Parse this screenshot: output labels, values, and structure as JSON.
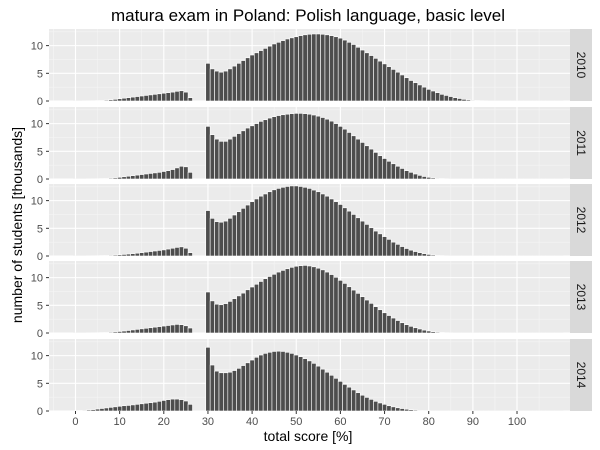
{
  "chart_data": {
    "type": "bar",
    "title": "matura exam in Poland: Polish language, basic level",
    "xlabel": "total score [%]",
    "ylabel": "number of students [thousands]",
    "xlim": [
      -6,
      112
    ],
    "ylim": [
      0,
      13
    ],
    "x_ticks": [
      0,
      10,
      20,
      30,
      40,
      50,
      60,
      70,
      80,
      90,
      100
    ],
    "y_ticks": [
      0,
      5,
      10
    ],
    "grid": true,
    "legend": "none",
    "panels": [
      {
        "label": "2010",
        "x": [
          0,
          1,
          2,
          3,
          4,
          5,
          6,
          7,
          8,
          9,
          10,
          11,
          12,
          13,
          14,
          15,
          16,
          17,
          18,
          19,
          20,
          21,
          22,
          23,
          24,
          25,
          26,
          27,
          28,
          29,
          30,
          31,
          32,
          33,
          34,
          35,
          36,
          37,
          38,
          39,
          40,
          41,
          42,
          43,
          44,
          45,
          46,
          47,
          48,
          49,
          50,
          51,
          52,
          53,
          54,
          55,
          56,
          57,
          58,
          59,
          60,
          61,
          62,
          63,
          64,
          65,
          66,
          67,
          68,
          69,
          70,
          71,
          72,
          73,
          74,
          75,
          76,
          77,
          78,
          79,
          80,
          81,
          82,
          83,
          84,
          85,
          86,
          87,
          88,
          89,
          90,
          91,
          92,
          93,
          94,
          95,
          96,
          97,
          98,
          99,
          100,
          101,
          102,
          103,
          104,
          105,
          106,
          107,
          108,
          109,
          110
        ],
        "values": [
          0.02,
          0.02,
          0.03,
          0.04,
          0.05,
          0.07,
          0.1,
          0.15,
          0.22,
          0.3,
          0.4,
          0.5,
          0.6,
          0.7,
          0.8,
          0.9,
          1.0,
          1.1,
          1.2,
          1.3,
          1.4,
          1.5,
          1.6,
          1.75,
          1.85,
          1.6,
          0.6,
          0,
          0,
          0,
          6.8,
          5.8,
          5.4,
          5.2,
          5.4,
          5.8,
          6.3,
          6.8,
          7.3,
          7.8,
          8.3,
          8.7,
          9.1,
          9.5,
          9.9,
          10.3,
          10.6,
          10.9,
          11.2,
          11.4,
          11.6,
          11.8,
          11.95,
          12.05,
          12.1,
          12.1,
          12.05,
          11.95,
          11.8,
          11.6,
          11.35,
          11.0,
          10.6,
          10.2,
          9.7,
          9.2,
          8.7,
          8.2,
          7.7,
          7.2,
          6.7,
          6.2,
          5.7,
          5.2,
          4.7,
          4.2,
          3.7,
          3.3,
          2.9,
          2.5,
          2.1,
          1.8,
          1.5,
          1.2,
          1.0,
          0.8,
          0.6,
          0.45,
          0.3,
          0.2,
          0.12,
          0.08,
          0.05,
          0.03,
          0.02,
          0.01,
          0.01,
          0.02,
          0.01,
          0.01,
          0.01,
          0.01,
          0.01,
          0.01,
          0.01,
          0.01,
          0.01,
          0.01,
          0.01,
          0.01,
          0.01
        ]
      },
      {
        "label": "2011",
        "x": [
          0,
          1,
          2,
          3,
          4,
          5,
          6,
          7,
          8,
          9,
          10,
          11,
          12,
          13,
          14,
          15,
          16,
          17,
          18,
          19,
          20,
          21,
          22,
          23,
          24,
          25,
          26,
          27,
          28,
          29,
          30,
          31,
          32,
          33,
          34,
          35,
          36,
          37,
          38,
          39,
          40,
          41,
          42,
          43,
          44,
          45,
          46,
          47,
          48,
          49,
          50,
          51,
          52,
          53,
          54,
          55,
          56,
          57,
          58,
          59,
          60,
          61,
          62,
          63,
          64,
          65,
          66,
          67,
          68,
          69,
          70,
          71,
          72,
          73,
          74,
          75,
          76,
          77,
          78,
          79,
          80,
          81,
          82,
          83,
          84,
          85,
          86,
          87,
          88,
          89,
          90,
          91,
          92,
          93,
          94,
          95,
          96,
          97,
          98,
          99,
          100,
          101,
          102,
          103,
          104,
          105,
          106,
          107,
          108,
          109,
          110
        ],
        "values": [
          0.02,
          0.02,
          0.02,
          0.03,
          0.04,
          0.05,
          0.07,
          0.1,
          0.15,
          0.2,
          0.3,
          0.4,
          0.5,
          0.6,
          0.7,
          0.8,
          0.9,
          1.0,
          1.1,
          1.2,
          1.35,
          1.5,
          1.7,
          2.0,
          2.3,
          2.2,
          1.2,
          0,
          0,
          0,
          9.5,
          8.0,
          7.2,
          6.8,
          6.8,
          7.2,
          7.7,
          8.2,
          8.7,
          9.2,
          9.6,
          10.0,
          10.4,
          10.7,
          11.0,
          11.25,
          11.45,
          11.6,
          11.7,
          11.8,
          11.85,
          11.85,
          11.8,
          11.7,
          11.55,
          11.35,
          11.1,
          10.8,
          10.45,
          10.0,
          9.5,
          9.0,
          8.4,
          7.8,
          7.2,
          6.6,
          6.0,
          5.4,
          4.8,
          4.2,
          3.7,
          3.2,
          2.75,
          2.3,
          1.9,
          1.5,
          1.2,
          0.9,
          0.65,
          0.45,
          0.3,
          0.2,
          0.12,
          0.07,
          0.04,
          0.02,
          0.01,
          0.01,
          0.01,
          0.01,
          0.01,
          0.01,
          0.01,
          0.01,
          0.01,
          0.01,
          0.01,
          0.01,
          0.01,
          0.01,
          0.01,
          0.01,
          0.01,
          0.01,
          0.01,
          0.01,
          0.01,
          0.01,
          0.01,
          0.01,
          0.01
        ]
      },
      {
        "label": "2012",
        "x": [
          0,
          1,
          2,
          3,
          4,
          5,
          6,
          7,
          8,
          9,
          10,
          11,
          12,
          13,
          14,
          15,
          16,
          17,
          18,
          19,
          20,
          21,
          22,
          23,
          24,
          25,
          26,
          27,
          28,
          29,
          30,
          31,
          32,
          33,
          34,
          35,
          36,
          37,
          38,
          39,
          40,
          41,
          42,
          43,
          44,
          45,
          46,
          47,
          48,
          49,
          50,
          51,
          52,
          53,
          54,
          55,
          56,
          57,
          58,
          59,
          60,
          61,
          62,
          63,
          64,
          65,
          66,
          67,
          68,
          69,
          70,
          71,
          72,
          73,
          74,
          75,
          76,
          77,
          78,
          79,
          80,
          81,
          82,
          83,
          84,
          85,
          86,
          87,
          88,
          89,
          90,
          91,
          92,
          93,
          94,
          95,
          96,
          97,
          98,
          99,
          100,
          101,
          102,
          103,
          104,
          105,
          106,
          107,
          108,
          109,
          110
        ],
        "values": [
          0.02,
          0.02,
          0.02,
          0.03,
          0.04,
          0.05,
          0.07,
          0.1,
          0.13,
          0.17,
          0.22,
          0.28,
          0.35,
          0.42,
          0.5,
          0.6,
          0.7,
          0.8,
          0.9,
          1.0,
          1.1,
          1.25,
          1.4,
          1.55,
          1.65,
          1.4,
          0.6,
          0,
          0,
          0,
          8.2,
          6.8,
          6.2,
          6.1,
          6.3,
          6.8,
          7.4,
          8.0,
          8.6,
          9.2,
          9.8,
          10.3,
          10.8,
          11.2,
          11.6,
          11.95,
          12.2,
          12.4,
          12.55,
          12.65,
          12.65,
          12.55,
          12.4,
          12.2,
          11.9,
          11.6,
          11.2,
          10.8,
          10.3,
          9.8,
          9.3,
          8.7,
          8.1,
          7.5,
          6.9,
          6.3,
          5.7,
          5.1,
          4.5,
          4.0,
          3.5,
          3.0,
          2.5,
          2.1,
          1.7,
          1.35,
          1.05,
          0.8,
          0.6,
          0.42,
          0.28,
          0.18,
          0.1,
          0.06,
          0.03,
          0.02,
          0.01,
          0.01,
          0.01,
          0.01,
          0.01,
          0.01,
          0.01,
          0.01,
          0.01,
          0.02,
          0.01,
          0.01,
          0.01,
          0.01,
          0.01,
          0.01,
          0.01,
          0.01,
          0.01,
          0.01,
          0.01,
          0.01,
          0.01,
          0.01,
          0.01
        ]
      },
      {
        "label": "2013",
        "x": [
          0,
          1,
          2,
          3,
          4,
          5,
          6,
          7,
          8,
          9,
          10,
          11,
          12,
          13,
          14,
          15,
          16,
          17,
          18,
          19,
          20,
          21,
          22,
          23,
          24,
          25,
          26,
          27,
          28,
          29,
          30,
          31,
          32,
          33,
          34,
          35,
          36,
          37,
          38,
          39,
          40,
          41,
          42,
          43,
          44,
          45,
          46,
          47,
          48,
          49,
          50,
          51,
          52,
          53,
          54,
          55,
          56,
          57,
          58,
          59,
          60,
          61,
          62,
          63,
          64,
          65,
          66,
          67,
          68,
          69,
          70,
          71,
          72,
          73,
          74,
          75,
          76,
          77,
          78,
          79,
          80,
          81,
          82,
          83,
          84,
          85,
          86,
          87,
          88,
          89,
          90,
          91,
          92,
          93,
          94,
          95,
          96,
          97,
          98,
          99,
          100,
          101,
          102,
          103,
          104,
          105,
          106,
          107,
          108,
          109,
          110
        ],
        "values": [
          0.02,
          0.02,
          0.02,
          0.03,
          0.04,
          0.05,
          0.07,
          0.1,
          0.14,
          0.2,
          0.27,
          0.35,
          0.45,
          0.55,
          0.65,
          0.75,
          0.85,
          0.95,
          1.05,
          1.15,
          1.25,
          1.35,
          1.45,
          1.55,
          1.5,
          1.3,
          0.9,
          0,
          0,
          0,
          7.4,
          5.8,
          5.2,
          5.1,
          5.3,
          5.7,
          6.2,
          6.7,
          7.2,
          7.8,
          8.3,
          8.8,
          9.3,
          9.8,
          10.2,
          10.6,
          11.0,
          11.3,
          11.6,
          11.85,
          12.05,
          12.15,
          12.2,
          12.1,
          11.95,
          11.7,
          11.4,
          11.0,
          10.55,
          10.05,
          9.5,
          8.95,
          8.35,
          7.75,
          7.15,
          6.55,
          5.95,
          5.35,
          4.75,
          4.2,
          3.65,
          3.15,
          2.7,
          2.25,
          1.85,
          1.5,
          1.2,
          0.95,
          0.72,
          0.52,
          0.36,
          0.24,
          0.15,
          0.09,
          0.05,
          0.03,
          0.01,
          0.01,
          0.01,
          0.01,
          0.01,
          0.01,
          0.01,
          0.01,
          0.01,
          0.01,
          0.01,
          0.01,
          0.01,
          0.01,
          0.01,
          0.01,
          0.01,
          0.01,
          0.01,
          0.01,
          0.01,
          0.01,
          0.01,
          0.01,
          0.01
        ]
      },
      {
        "label": "2014",
        "x": [
          0,
          1,
          2,
          3,
          4,
          5,
          6,
          7,
          8,
          9,
          10,
          11,
          12,
          13,
          14,
          15,
          16,
          17,
          18,
          19,
          20,
          21,
          22,
          23,
          24,
          25,
          26,
          27,
          28,
          29,
          30,
          31,
          32,
          33,
          34,
          35,
          36,
          37,
          38,
          39,
          40,
          41,
          42,
          43,
          44,
          45,
          46,
          47,
          48,
          49,
          50,
          51,
          52,
          53,
          54,
          55,
          56,
          57,
          58,
          59,
          60,
          61,
          62,
          63,
          64,
          65,
          66,
          67,
          68,
          69,
          70,
          71,
          72,
          73,
          74,
          75,
          76,
          77,
          78,
          79,
          80,
          81,
          82,
          83,
          84,
          85,
          86,
          87,
          88,
          89,
          90,
          91,
          92,
          93,
          94,
          95,
          96,
          97,
          98,
          99,
          100,
          101,
          102,
          103,
          104,
          105,
          106,
          107,
          108,
          109,
          110
        ],
        "values": [
          0.05,
          0.08,
          0.12,
          0.18,
          0.25,
          0.35,
          0.45,
          0.55,
          0.65,
          0.75,
          0.85,
          0.95,
          1.0,
          1.1,
          1.2,
          1.3,
          1.4,
          1.5,
          1.6,
          1.75,
          1.9,
          2.05,
          2.15,
          2.15,
          2.05,
          1.8,
          1.2,
          0,
          0,
          0,
          11.5,
          8.3,
          7.2,
          6.9,
          6.9,
          7.0,
          7.3,
          7.7,
          8.2,
          8.7,
          9.2,
          9.7,
          10.1,
          10.4,
          10.6,
          10.75,
          10.8,
          10.75,
          10.6,
          10.4,
          10.1,
          9.8,
          9.45,
          9.05,
          8.6,
          8.1,
          7.55,
          7.0,
          6.45,
          5.9,
          5.35,
          4.8,
          4.3,
          3.8,
          3.3,
          2.85,
          2.45,
          2.1,
          1.75,
          1.45,
          1.2,
          0.95,
          0.75,
          0.58,
          0.44,
          0.32,
          0.23,
          0.16,
          0.11,
          0.07,
          0.04,
          0.02,
          0.01,
          0.01,
          0.01,
          0.01,
          0.01,
          0.01,
          0.01,
          0.01,
          0.01,
          0.01,
          0.01,
          0.01,
          0.01,
          0.01,
          0.01,
          0.01,
          0.01,
          0.01,
          0.01,
          0.01,
          0.01,
          0.01,
          0.01,
          0.01,
          0.01,
          0.01,
          0.01,
          0.01,
          0.01
        ]
      }
    ]
  },
  "colors": {
    "panel_background": "#ebebeb",
    "grid_major": "#ffffff",
    "grid_minor": "#f5f5f5",
    "bar_fill": "#4d4d4d",
    "bar_outline": "#ffffff",
    "strip_background": "#d9d9d9",
    "tick_text": "#4d4d4d"
  }
}
